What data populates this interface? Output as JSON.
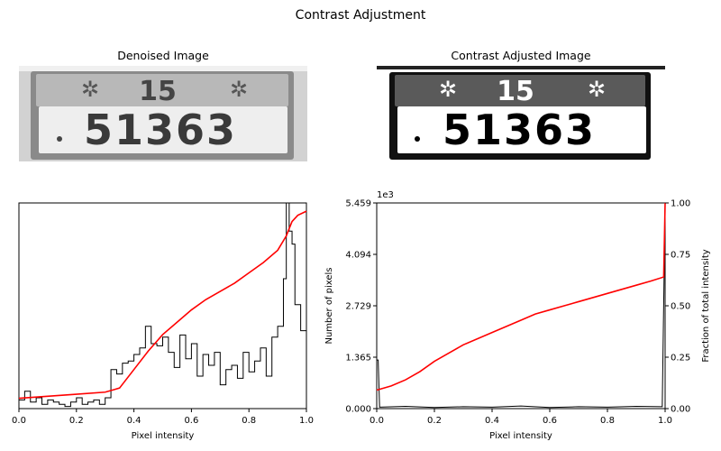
{
  "figure": {
    "title": "Contrast Adjustment"
  },
  "panels": {
    "denoised": {
      "title": "Denoised Image",
      "top_text": "15",
      "plate_number": "51363"
    },
    "adjusted": {
      "title": "Contrast Adjusted Image",
      "top_text": "15",
      "plate_number": "51363"
    }
  },
  "colors": {
    "histogram": "#000000",
    "cdf": "#ff0000"
  },
  "chart_data": [
    {
      "id": "hist_denoised",
      "type": "line",
      "xlabel": "Pixel intensity",
      "xlim": [
        0,
        1
      ],
      "xticks": [
        "0.0",
        "0.2",
        "0.4",
        "0.6",
        "0.8",
        "1.0"
      ],
      "yticks_hidden": true,
      "histogram_steps": true,
      "series": [
        {
          "role": "histogram",
          "x": [
            0.0,
            0.02,
            0.04,
            0.06,
            0.08,
            0.1,
            0.12,
            0.14,
            0.16,
            0.18,
            0.2,
            0.22,
            0.24,
            0.26,
            0.28,
            0.3,
            0.32,
            0.34,
            0.36,
            0.38,
            0.4,
            0.42,
            0.44,
            0.46,
            0.48,
            0.5,
            0.52,
            0.54,
            0.56,
            0.58,
            0.6,
            0.62,
            0.64,
            0.66,
            0.68,
            0.7,
            0.72,
            0.74,
            0.76,
            0.78,
            0.8,
            0.82,
            0.84,
            0.86,
            0.88,
            0.9,
            0.92,
            0.93,
            0.94,
            0.95,
            0.96,
            0.98,
            1.0
          ],
          "y": [
            0.04,
            0.08,
            0.03,
            0.05,
            0.02,
            0.04,
            0.03,
            0.02,
            0.01,
            0.03,
            0.05,
            0.02,
            0.03,
            0.04,
            0.02,
            0.05,
            0.18,
            0.16,
            0.21,
            0.22,
            0.25,
            0.28,
            0.38,
            0.3,
            0.29,
            0.33,
            0.26,
            0.19,
            0.34,
            0.23,
            0.3,
            0.15,
            0.25,
            0.2,
            0.26,
            0.11,
            0.18,
            0.2,
            0.14,
            0.26,
            0.17,
            0.22,
            0.28,
            0.15,
            0.33,
            0.38,
            0.6,
            0.95,
            0.82,
            0.76,
            0.48,
            0.36,
            0.3
          ]
        },
        {
          "role": "cdf",
          "x": [
            0.0,
            0.1,
            0.2,
            0.3,
            0.35,
            0.4,
            0.45,
            0.5,
            0.55,
            0.6,
            0.65,
            0.7,
            0.75,
            0.8,
            0.85,
            0.9,
            0.93,
            0.95,
            0.97,
            1.0
          ],
          "y": [
            0.05,
            0.06,
            0.07,
            0.08,
            0.1,
            0.19,
            0.28,
            0.36,
            0.42,
            0.48,
            0.53,
            0.57,
            0.61,
            0.66,
            0.71,
            0.77,
            0.84,
            0.91,
            0.94,
            0.96
          ]
        }
      ]
    },
    {
      "id": "hist_adjusted",
      "type": "line",
      "xlabel": "Pixel intensity",
      "ylabel": "Number of pixels",
      "ylabel_right": "Fraction of total intensity",
      "xlim": [
        0,
        1
      ],
      "ylim": [
        0,
        5459
      ],
      "y_offset_label": "1e3",
      "xticks": [
        "0.0",
        "0.2",
        "0.4",
        "0.6",
        "0.8",
        "1.0"
      ],
      "yticks": [
        "0.000",
        "1.365",
        "2.729",
        "4.094",
        "5.459"
      ],
      "yticks_right": [
        "0.00",
        "0.25",
        "0.50",
        "0.75",
        "1.00"
      ],
      "series": [
        {
          "role": "histogram",
          "x": [
            0.0,
            0.005,
            0.01,
            0.1,
            0.2,
            0.3,
            0.4,
            0.5,
            0.6,
            0.7,
            0.8,
            0.9,
            0.99,
            1.0
          ],
          "y": [
            1290,
            1290,
            40,
            60,
            30,
            50,
            40,
            70,
            30,
            50,
            40,
            60,
            50,
            5459
          ]
        },
        {
          "role": "cdf",
          "x": [
            0.0,
            0.05,
            0.1,
            0.15,
            0.2,
            0.25,
            0.3,
            0.4,
            0.5,
            0.55,
            0.6,
            0.65,
            0.7,
            0.8,
            0.9,
            0.95,
            0.995,
            1.0
          ],
          "y": [
            0.09,
            0.11,
            0.14,
            0.18,
            0.23,
            0.27,
            0.31,
            0.37,
            0.43,
            0.46,
            0.48,
            0.5,
            0.52,
            0.56,
            0.6,
            0.62,
            0.64,
            1.0
          ]
        }
      ]
    }
  ]
}
